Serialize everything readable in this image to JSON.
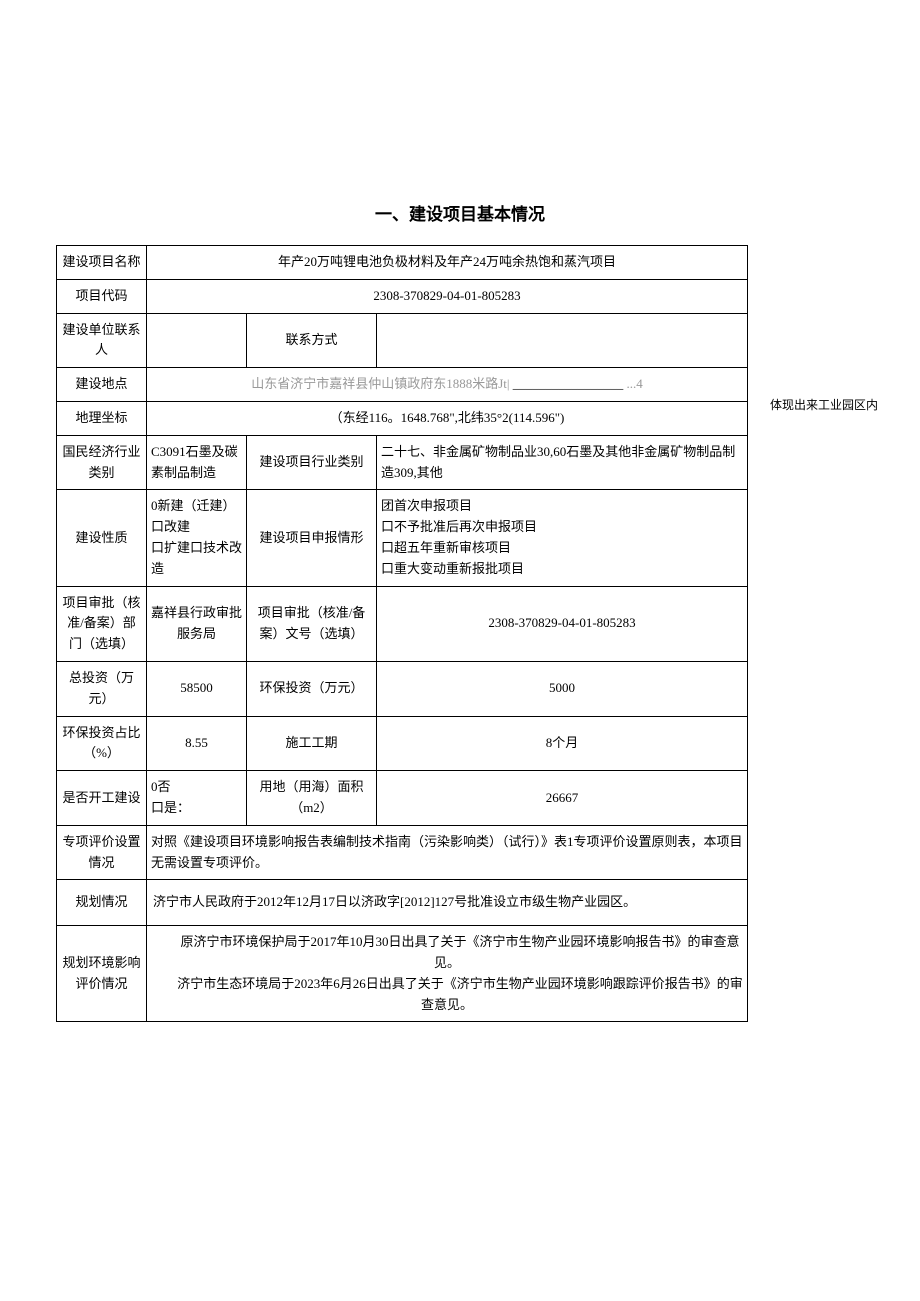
{
  "title": "一、建设项目基本情况",
  "side_note": "体现出来工业园区内",
  "rows": {
    "project_name_label": "建设项目名称",
    "project_name_value": "年产20万吨锂电池负极材料及年产24万吨余热饱和蒸汽项目",
    "project_code_label": "项目代码",
    "project_code_value": "2308-370829-04-01-805283",
    "contact_person_label": "建设单位联系人",
    "contact_person_value": "",
    "contact_method_label": "联系方式",
    "contact_method_value": "",
    "location_label": "建设地点",
    "location_prefix": "山东省济宁市嘉祥县仲山镇政府东1888米路Jt| ",
    "location_suffix": "...4",
    "geo_label": "地理坐标",
    "geo_value": "（东经116。1648.768\",北纬35°2(114.596\")",
    "industry_label": "国民经济行业类别",
    "industry_value": "C3091石墨及碳素制品制造",
    "industry_type_label": "建设项目行业类别",
    "industry_type_value": "二十七、非金属矿物制品业30,60石墨及其他非金属矿物制品制造309,其他",
    "nature_label": "建设性质",
    "nature_value": "0新建（迁建）口改建\n口扩建口技术改造",
    "report_label": "建设项目申报情形",
    "report_value": "团首次申报项目\n口不予批准后再次申报项目\n口超五年重新审核项目\n口重大变动重新报批项目",
    "approval_dept_label": "项目审批（核准/备案）部门（选填）",
    "approval_dept_value": "嘉祥县行政审批服务局",
    "approval_no_label": "项目审批（核准/备案）文号（选填）",
    "approval_no_value": "2308-370829-04-01-805283",
    "total_invest_label": "总投资（万元）",
    "total_invest_value": "58500",
    "env_invest_label": "环保投资（万元）",
    "env_invest_value": "5000",
    "env_ratio_label": "环保投资占比（%）",
    "env_ratio_value": "8.55",
    "construction_period_label": "施工工期",
    "construction_period_value": "8个月",
    "started_label": "是否开工建设",
    "started_value": "0否\n口是：",
    "land_area_label": "用地（用海）面积（m2）",
    "land_area_value": "26667",
    "special_eval_label": "专项评价设置情况",
    "special_eval_value": "对照《建设项目环境影响报告表编制技术指南（污染影响类）（试行）》表1专项评价设置原则表，本项目无需设置专项评价。",
    "planning_label": "规划情况",
    "planning_value": "济宁市人民政府于2012年12月17日以济政字[2012]127号批准设立市级生物产业园区。",
    "planning_env_label": "规划环境影响评价情况",
    "planning_env_line1": "　　原济宁市环境保护局于2017年10月30日出具了关于《济宁市生物产业园环境影响报告书》的审查意见。",
    "planning_env_line2": "　　济宁市生态环境局于2023年6月26日出具了关于《济宁市生物产业园环境影响跟踪评价报告书》的审查意见。"
  },
  "colors": {
    "border": "#000000",
    "background": "#ffffff",
    "text": "#000000",
    "gray": "#999999"
  }
}
